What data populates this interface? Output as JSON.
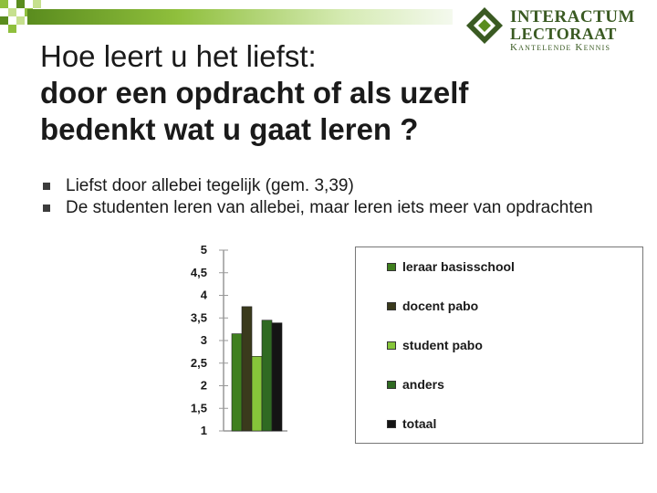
{
  "title": {
    "line1": "Hoe leert u het liefst:",
    "line2": "door een opdracht of als uzelf",
    "line3": "bedenkt wat u gaat leren ?"
  },
  "bullets": [
    "Liefst door allebei tegelijk (gem. 3,39)",
    "De studenten leren van allebei, maar leren iets meer van opdrachten"
  ],
  "logo": {
    "name_line1": "INTERACTUM",
    "name_line2": "LECTORAAT",
    "tagline": "Kantelende Kennis"
  },
  "colors": {
    "header_bar": "#5a8c1e",
    "logo_green": "#3a5a22",
    "bullet": "#3c3c3c"
  },
  "chart_data": {
    "type": "bar",
    "categories": [
      ""
    ],
    "series": [
      {
        "name": "leraar basisschool",
        "values": [
          3.15
        ],
        "color": "#3f7f1e"
      },
      {
        "name": "docent pabo",
        "values": [
          3.75
        ],
        "color": "#3a3a1c"
      },
      {
        "name": "student pabo",
        "values": [
          2.65
        ],
        "color": "#86c53a"
      },
      {
        "name": "anders",
        "values": [
          3.45
        ],
        "color": "#2f6a22"
      },
      {
        "name": "totaal",
        "values": [
          3.39
        ],
        "color": "#141414"
      }
    ],
    "ylim": [
      1,
      5
    ],
    "yticks": [
      "1",
      "1,5",
      "2",
      "2,5",
      "3",
      "3,5",
      "4",
      "4,5",
      "5"
    ],
    "ytick_values": [
      1,
      1.5,
      2,
      2.5,
      3,
      3.5,
      4,
      4.5,
      5
    ],
    "grid": false,
    "legend_position": "right",
    "title": "",
    "xlabel": "",
    "ylabel": ""
  }
}
